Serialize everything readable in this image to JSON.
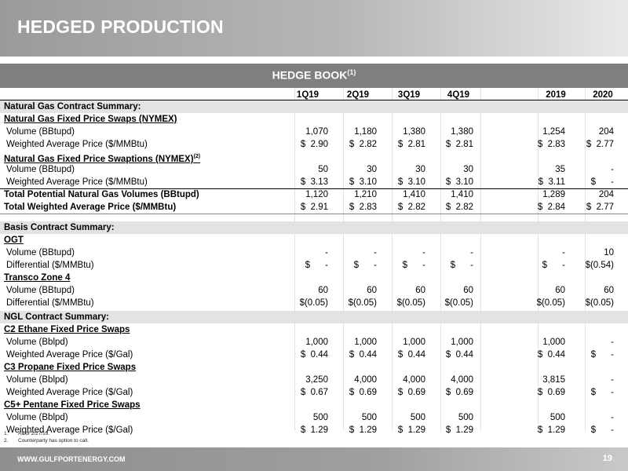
{
  "header": {
    "title": "HEDGED PRODUCTION"
  },
  "band": {
    "title": "HEDGE BOOK",
    "sup": "(1)"
  },
  "columns": [
    "1Q19",
    "2Q19",
    "3Q19",
    "4Q19",
    "2019",
    "2020"
  ],
  "rows": [
    {
      "label": "Natural Gas Contract Summary:",
      "style": "section",
      "values": [
        "",
        "",
        "",
        "",
        "",
        ""
      ]
    },
    {
      "label": "Natural Gas Fixed Price Swaps (NYMEX)",
      "style": "sub",
      "values": [
        "",
        "",
        "",
        "",
        "",
        ""
      ]
    },
    {
      "label": "Volume (BBtupd)",
      "style": "item",
      "values": [
        "1,070",
        "1,180",
        "1,380",
        "1,380",
        "1,254",
        "204"
      ]
    },
    {
      "label": "Weighted Average Price ($/MMBtu)",
      "style": "item",
      "values": [
        "$  2.90",
        "$  2.82",
        "$  2.81",
        "$  2.81",
        "$  2.83",
        "$  2.77"
      ]
    },
    {
      "label": "Natural Gas Fixed Price Swaptions (NYMEX)",
      "sup": "(2)",
      "style": "sub",
      "values": [
        "",
        "",
        "",
        "",
        "",
        ""
      ]
    },
    {
      "label": "Volume (BBtupd)",
      "style": "item",
      "values": [
        "50",
        "30",
        "30",
        "30",
        "35",
        "-"
      ]
    },
    {
      "label": "Weighted Average Price ($/MMBtu)",
      "style": "item",
      "values": [
        "$  3.13",
        "$  3.10",
        "$  3.10",
        "$  3.10",
        "$  3.11",
        "$      -"
      ]
    },
    {
      "label": "Total Potential Natural Gas Volumes (BBtupd)",
      "style": "total",
      "values": [
        "1,120",
        "1,210",
        "1,410",
        "1,410",
        "1,289",
        "204"
      ]
    },
    {
      "label": "Total Weighted Average Price ($/MMBtu)",
      "style": "total",
      "values": [
        "$  2.91",
        "$  2.83",
        "$  2.82",
        "$  2.82",
        "$  2.84",
        "$  2.77"
      ]
    },
    {
      "label": "Basis Contract Summary:",
      "style": "section",
      "values": [
        "",
        "",
        "",
        "",
        "",
        ""
      ]
    },
    {
      "label": "OGT",
      "style": "sub",
      "values": [
        "",
        "",
        "",
        "",
        "",
        ""
      ]
    },
    {
      "label": "Volume (BBtupd)",
      "style": "item",
      "values": [
        "-",
        "-",
        "-",
        "-",
        "-",
        "10"
      ]
    },
    {
      "label": "Differential ($/MMBtu)",
      "style": "item",
      "values": [
        "$      -",
        "$      -",
        "$      -",
        "$      -",
        "$      -",
        "$(0.54)"
      ]
    },
    {
      "label": "Transco Zone 4",
      "style": "sub",
      "values": [
        "",
        "",
        "",
        "",
        "",
        ""
      ]
    },
    {
      "label": "Volume (BBtupd)",
      "style": "item",
      "values": [
        "60",
        "60",
        "60",
        "60",
        "60",
        "60"
      ]
    },
    {
      "label": "Differential ($/MMBtu)",
      "style": "item",
      "values": [
        "$(0.05)",
        "$(0.05)",
        "$(0.05)",
        "$(0.05)",
        "$(0.05)",
        "$(0.05)"
      ]
    },
    {
      "label": "NGL Contract Summary:",
      "style": "section",
      "values": [
        "",
        "",
        "",
        "",
        "",
        ""
      ]
    },
    {
      "label": "C2 Ethane Fixed Price Swaps",
      "style": "sub",
      "values": [
        "",
        "",
        "",
        "",
        "",
        ""
      ]
    },
    {
      "label": "Volume (Bblpd)",
      "style": "item",
      "values": [
        "1,000",
        "1,000",
        "1,000",
        "1,000",
        "1,000",
        "-"
      ]
    },
    {
      "label": "Weighted Average Price ($/Gal)",
      "style": "item",
      "values": [
        "$  0.44",
        "$  0.44",
        "$  0.44",
        "$  0.44",
        "$  0.44",
        "$      -"
      ]
    },
    {
      "label": "C3 Propane Fixed Price Swaps",
      "style": "sub",
      "values": [
        "",
        "",
        "",
        "",
        "",
        ""
      ]
    },
    {
      "label": "Volume (Bblpd)",
      "style": "item",
      "values": [
        "3,250",
        "4,000",
        "4,000",
        "4,000",
        "3,815",
        "-"
      ]
    },
    {
      "label": "Weighted Average Price ($/Gal)",
      "style": "item",
      "values": [
        "$  0.67",
        "$  0.69",
        "$  0.69",
        "$  0.69",
        "$  0.69",
        "$      -"
      ]
    },
    {
      "label": "C5+  Pentane Fixed Price Swaps",
      "style": "sub",
      "values": [
        "",
        "",
        "",
        "",
        "",
        ""
      ]
    },
    {
      "label": "Volume (Bblpd)",
      "style": "item",
      "values": [
        "500",
        "500",
        "500",
        "500",
        "500",
        "-"
      ]
    },
    {
      "label": "Weighted Average Price ($/Gal)",
      "style": "item",
      "values": [
        "$  1.29",
        "$  1.29",
        "$  1.29",
        "$  1.29",
        "$  1.29",
        "$      -"
      ]
    }
  ],
  "notes": [
    {
      "num": "1.",
      "text": "As of  2/27/19."
    },
    {
      "num": "2.",
      "text": "Counterparty has option to call."
    }
  ],
  "footer": {
    "url": "WWW.GULFPORTENERGY.COM",
    "page": "19"
  }
}
